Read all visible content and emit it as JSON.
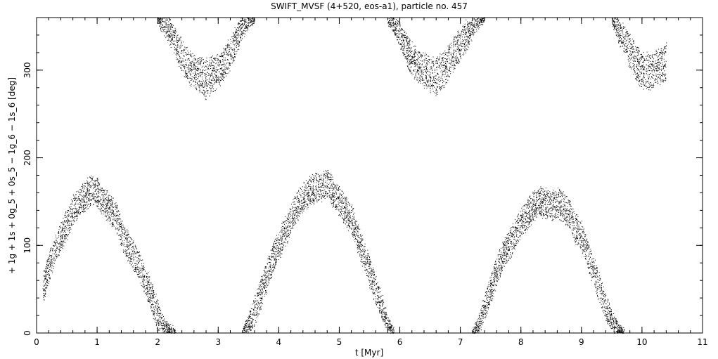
{
  "chart_data": {
    "type": "scatter",
    "title": "SWIFT_MVSF (4+520, eos-a1), particle no. 457",
    "xlabel": "t [Myr]",
    "ylabel": "+ 1g + 1s + 0g_5 + 0s_5 − 1g_6 − 1s_6 [deg]",
    "xlim": [
      0,
      11
    ],
    "ylim": [
      0,
      360
    ],
    "x_ticks": [
      0,
      1,
      2,
      3,
      4,
      5,
      6,
      7,
      8,
      9,
      10,
      11
    ],
    "y_ticks": [
      0,
      100,
      200,
      300
    ],
    "x_minor_step": 0.2,
    "y_minor_step": 20,
    "grid": false,
    "marker_color": "#000000",
    "series": [
      {
        "x": [
          0.1,
          0.2,
          0.3,
          0.4,
          0.5,
          0.6,
          0.7,
          0.8,
          0.9,
          1.0,
          1.1,
          1.2,
          1.3,
          1.4,
          1.5,
          1.6,
          1.7,
          1.8,
          1.9,
          2.0,
          2.1,
          2.2,
          2.3
        ],
        "y": [
          50,
          75,
          95,
          110,
          125,
          140,
          148,
          155,
          165,
          160,
          150,
          142,
          135,
          115,
          100,
          88,
          75,
          60,
          40,
          20,
          8,
          2,
          0
        ],
        "spread": [
          16,
          16,
          16,
          16,
          16,
          16,
          16,
          16,
          16,
          16,
          16,
          16,
          16,
          16,
          16,
          16,
          16,
          16,
          16,
          16,
          10,
          6,
          4
        ]
      },
      {
        "x": [
          2.0,
          2.1,
          2.2,
          2.3,
          2.4,
          2.5,
          2.6,
          2.7,
          2.8,
          2.9,
          3.0,
          3.1,
          3.2,
          3.3,
          3.4,
          3.5,
          3.6
        ],
        "y": [
          360,
          352,
          345,
          330,
          315,
          305,
          300,
          295,
          290,
          295,
          300,
          310,
          320,
          335,
          350,
          358,
          360
        ],
        "spread": [
          6,
          10,
          14,
          16,
          18,
          18,
          18,
          20,
          22,
          20,
          18,
          18,
          18,
          16,
          12,
          8,
          4
        ]
      },
      {
        "x": [
          3.4,
          3.5,
          3.6,
          3.7,
          3.8,
          3.9,
          4.0,
          4.1,
          4.2,
          4.3,
          4.4,
          4.5,
          4.6,
          4.7,
          4.8,
          4.9,
          5.0,
          5.1,
          5.2,
          5.3,
          5.4,
          5.5,
          5.6,
          5.7,
          5.8,
          5.9
        ],
        "y": [
          0,
          10,
          25,
          45,
          65,
          85,
          100,
          115,
          130,
          145,
          155,
          162,
          165,
          168,
          172,
          160,
          150,
          140,
          130,
          110,
          90,
          70,
          50,
          30,
          10,
          0
        ],
        "spread": [
          4,
          10,
          16,
          16,
          16,
          16,
          16,
          16,
          16,
          16,
          16,
          16,
          16,
          16,
          16,
          16,
          16,
          16,
          16,
          16,
          16,
          16,
          16,
          14,
          8,
          4
        ]
      },
      {
        "x": [
          5.8,
          5.9,
          6.0,
          6.1,
          6.2,
          6.3,
          6.4,
          6.5,
          6.6,
          6.7,
          6.8,
          6.9,
          7.0,
          7.1,
          7.2,
          7.3,
          7.4
        ],
        "y": [
          360,
          352,
          340,
          325,
          312,
          305,
          300,
          295,
          292,
          300,
          310,
          320,
          330,
          340,
          350,
          358,
          360
        ],
        "spread": [
          6,
          10,
          14,
          16,
          18,
          18,
          18,
          20,
          22,
          20,
          18,
          18,
          18,
          16,
          12,
          8,
          4
        ]
      },
      {
        "x": [
          7.2,
          7.3,
          7.4,
          7.5,
          7.6,
          7.7,
          7.8,
          7.9,
          8.0,
          8.1,
          8.2,
          8.3,
          8.4,
          8.5,
          8.6,
          8.7,
          8.8,
          8.9,
          9.0,
          9.1,
          9.2,
          9.3,
          9.4,
          9.5,
          9.6,
          9.7
        ],
        "y": [
          0,
          10,
          30,
          50,
          70,
          90,
          100,
          112,
          125,
          135,
          145,
          150,
          148,
          145,
          150,
          145,
          135,
          120,
          110,
          90,
          70,
          50,
          30,
          15,
          5,
          0
        ],
        "spread": [
          4,
          10,
          16,
          16,
          16,
          16,
          16,
          16,
          16,
          16,
          16,
          16,
          16,
          16,
          16,
          16,
          16,
          16,
          16,
          16,
          16,
          16,
          14,
          10,
          6,
          4
        ]
      },
      {
        "x": [
          9.5,
          9.6,
          9.7,
          9.8,
          9.9,
          10.0,
          10.1,
          10.2,
          10.3,
          10.4
        ],
        "y": [
          360,
          345,
          335,
          322,
          310,
          300,
          298,
          302,
          305,
          310
        ],
        "spread": [
          6,
          12,
          16,
          18,
          20,
          20,
          20,
          20,
          20,
          20
        ]
      }
    ]
  }
}
